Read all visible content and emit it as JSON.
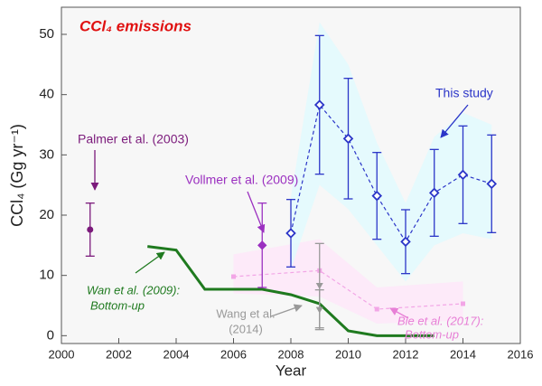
{
  "chart_data": {
    "type": "errorbar",
    "title": "CCl₄ emissions",
    "x_label": "Year",
    "y_label": "CCl₄ (Gg yr⁻¹)",
    "xlim": [
      2000,
      2016
    ],
    "xticks": [
      2000,
      2002,
      2004,
      2006,
      2008,
      2010,
      2012,
      2014,
      2016
    ],
    "ylim": [
      -1.3,
      54.5
    ],
    "yticks": [
      0,
      10,
      20,
      30,
      40,
      50
    ],
    "series": [
      {
        "label": [
          "Bie et al. (2017):",
          "Bottom-up"
        ],
        "color": "#f2a6e6",
        "line": "dashed",
        "marker": "square",
        "x": [
          2006,
          2009,
          2011,
          2014
        ],
        "values": [
          9.8,
          10.8,
          4.4,
          5.3
        ],
        "band_low": [
          7,
          6.5,
          2,
          2.5
        ],
        "band_high": [
          13.5,
          16,
          8,
          9
        ],
        "band_color": "#fde8f8"
      },
      {
        "label": [
          "This study"
        ],
        "color": "#2b35c8",
        "line": "dashed",
        "marker": "diamond-open",
        "x": [
          2008,
          2009,
          2010,
          2011,
          2012,
          2013,
          2014,
          2015
        ],
        "values": [
          17,
          38.3,
          32.7,
          23.2,
          15.6,
          23.7,
          26.7,
          25.2
        ],
        "errors": [
          5.6,
          11.5,
          10,
          7.2,
          5.3,
          7.2,
          8.1,
          8.1
        ],
        "band_low": [
          11,
          25,
          21,
          15,
          9,
          15,
          17,
          16
        ],
        "band_high": [
          23,
          52,
          45,
          32,
          22,
          33,
          37,
          35
        ],
        "band_color": "#e2fafd"
      },
      {
        "label": [
          "Wan et al. (2009):",
          "Bottom-up"
        ],
        "color": "#1f7a1f",
        "line": "solid",
        "marker": "none",
        "x": [
          2003,
          2004,
          2005,
          2006,
          2007,
          2008,
          2009,
          2010,
          2011,
          2012,
          2013
        ],
        "values": [
          14.8,
          14.2,
          7.7,
          7.7,
          7.7,
          6.8,
          5.3,
          0.8,
          0,
          0,
          0
        ]
      },
      {
        "label": [
          "Wang et al.",
          "(2014)"
        ],
        "color": "#999999",
        "line": "none",
        "marker": "triangle-down",
        "x": [
          2009,
          2009
        ],
        "values": [
          8.3,
          4.3
        ],
        "errors": [
          7,
          3.3
        ]
      },
      {
        "label": [
          "Palmer et al. (2003)"
        ],
        "color": "#7b1a7b",
        "line": "none",
        "marker": "circle",
        "x": [
          2001
        ],
        "values": [
          17.6
        ],
        "errors": [
          4.4
        ]
      },
      {
        "label": [
          "Vollmer et al. (2009)"
        ],
        "color": "#9b30c0",
        "line": "none",
        "marker": "diamond",
        "x": [
          2007
        ],
        "values": [
          15
        ],
        "errors": [
          7
        ]
      }
    ]
  }
}
